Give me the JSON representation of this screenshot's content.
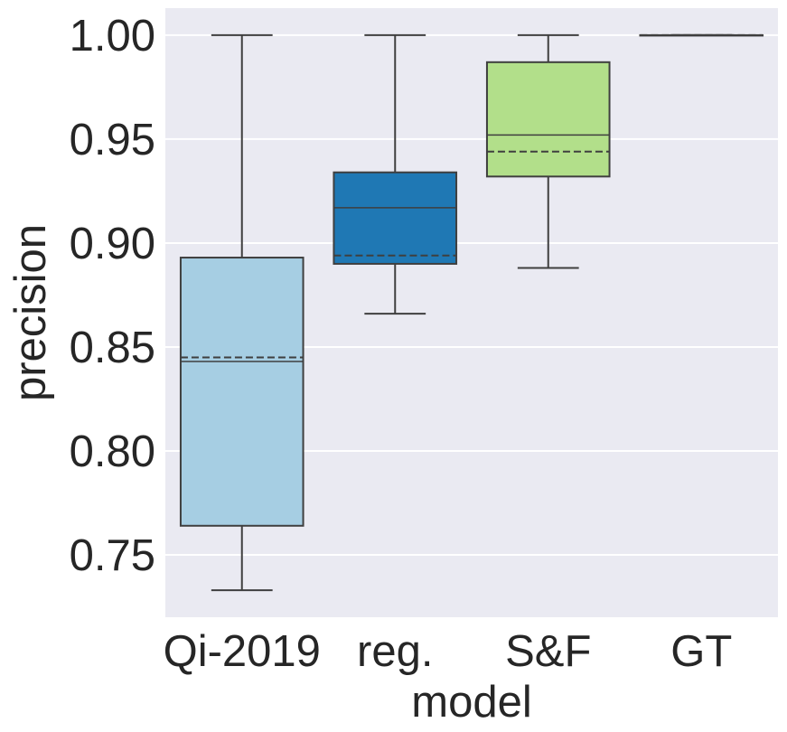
{
  "chart_data": {
    "type": "box",
    "title": "",
    "xlabel": "model",
    "ylabel": "precision",
    "ylim": [
      0.72,
      1.013
    ],
    "yticks": [
      0.75,
      0.8,
      0.85,
      0.9,
      0.95,
      1.0
    ],
    "ytick_labels": [
      "0.75",
      "0.80",
      "0.85",
      "0.90",
      "0.95",
      "1.00"
    ],
    "grid": true,
    "categories": [
      "Qi-2019",
      "reg.",
      "S&F",
      "GT"
    ],
    "boxes": [
      {
        "name": "Qi-2019",
        "whisker_low": 0.733,
        "q1": 0.764,
        "median": 0.843,
        "mean": 0.845,
        "q3": 0.893,
        "whisker_high": 1.0,
        "color": "#a6cee3"
      },
      {
        "name": "reg.",
        "whisker_low": 0.866,
        "q1": 0.89,
        "median": 0.917,
        "mean": 0.894,
        "q3": 0.934,
        "whisker_high": 1.0,
        "color": "#1f78b4"
      },
      {
        "name": "S&F",
        "whisker_low": 0.888,
        "q1": 0.932,
        "median": 0.952,
        "mean": 0.944,
        "q3": 0.987,
        "whisker_high": 1.0,
        "color": "#b2df8a"
      },
      {
        "name": "GT",
        "whisker_low": 1.0,
        "q1": 1.0,
        "median": 1.0,
        "mean": 1.0,
        "q3": 1.0,
        "whisker_high": 1.0,
        "color": "#33a02c"
      }
    ],
    "colors": {
      "background": "#eaeaf2",
      "grid": "#ffffff",
      "line": "#3f3f3f",
      "text": "#262626"
    }
  }
}
